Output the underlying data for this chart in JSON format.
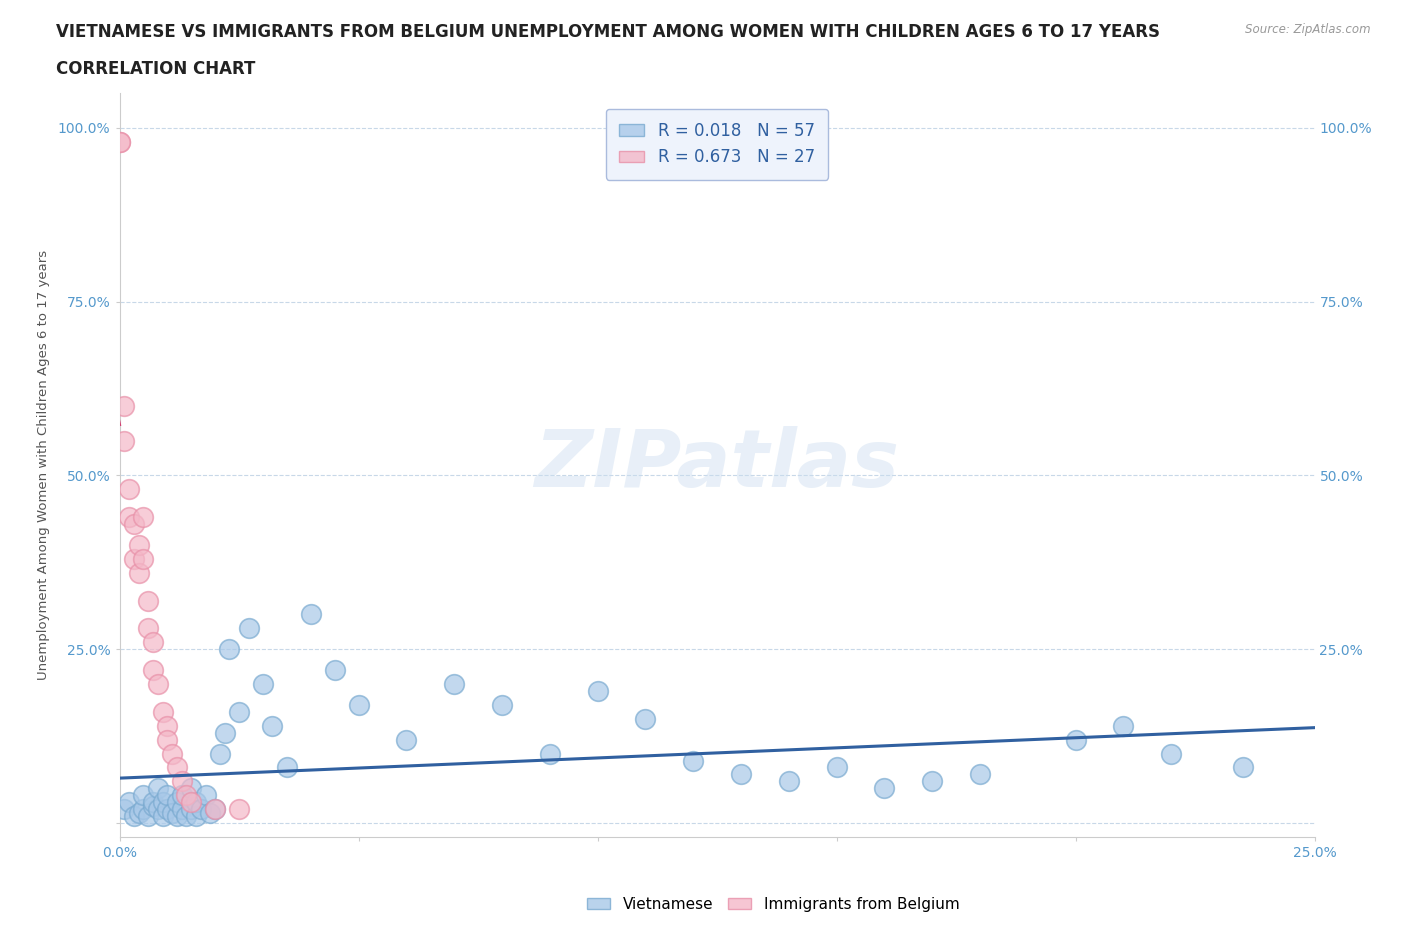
{
  "title_line1": "VIETNAMESE VS IMMIGRANTS FROM BELGIUM UNEMPLOYMENT AMONG WOMEN WITH CHILDREN AGES 6 TO 17 YEARS",
  "title_line2": "CORRELATION CHART",
  "source_text": "Source: ZipAtlas.com",
  "ylabel": "Unemployment Among Women with Children Ages 6 to 17 years",
  "xlim": [
    0.0,
    0.25
  ],
  "ylim": [
    -0.02,
    1.05
  ],
  "watermark": "ZIPatlas",
  "blue_label": "Vietnamese",
  "pink_label": "Immigrants from Belgium",
  "blue_R": 0.018,
  "blue_N": 57,
  "pink_R": 0.673,
  "pink_N": 27,
  "blue_color": "#a8c8e8",
  "pink_color": "#f4b8c8",
  "blue_edge_color": "#7aaad0",
  "pink_edge_color": "#e890a8",
  "blue_line_color": "#3060a0",
  "pink_line_color": "#d04070",
  "pink_dash_color": "#e898b8",
  "title_color": "#222222",
  "axis_label_color": "#555555",
  "tick_color": "#5599cc",
  "grid_color": "#c8d8e8",
  "legend_face_color": "#eef3fc",
  "legend_edge_color": "#aabbdd",
  "blue_scatter_x": [
    0.001,
    0.002,
    0.003,
    0.004,
    0.005,
    0.005,
    0.006,
    0.007,
    0.007,
    0.008,
    0.008,
    0.009,
    0.009,
    0.01,
    0.01,
    0.011,
    0.012,
    0.012,
    0.013,
    0.013,
    0.014,
    0.015,
    0.015,
    0.016,
    0.016,
    0.017,
    0.018,
    0.019,
    0.02,
    0.021,
    0.022,
    0.023,
    0.025,
    0.027,
    0.03,
    0.032,
    0.035,
    0.04,
    0.045,
    0.05,
    0.06,
    0.07,
    0.08,
    0.09,
    0.1,
    0.11,
    0.12,
    0.13,
    0.14,
    0.15,
    0.16,
    0.17,
    0.18,
    0.2,
    0.21,
    0.22,
    0.235
  ],
  "blue_scatter_y": [
    0.02,
    0.03,
    0.01,
    0.015,
    0.02,
    0.04,
    0.01,
    0.025,
    0.03,
    0.02,
    0.05,
    0.01,
    0.03,
    0.02,
    0.04,
    0.015,
    0.01,
    0.03,
    0.02,
    0.04,
    0.01,
    0.02,
    0.05,
    0.01,
    0.03,
    0.02,
    0.04,
    0.015,
    0.02,
    0.1,
    0.13,
    0.25,
    0.16,
    0.28,
    0.2,
    0.14,
    0.08,
    0.3,
    0.22,
    0.17,
    0.12,
    0.2,
    0.17,
    0.1,
    0.19,
    0.15,
    0.09,
    0.07,
    0.06,
    0.08,
    0.05,
    0.06,
    0.07,
    0.12,
    0.14,
    0.1,
    0.08
  ],
  "pink_scatter_x": [
    0.0,
    0.0,
    0.001,
    0.001,
    0.002,
    0.002,
    0.003,
    0.003,
    0.004,
    0.004,
    0.005,
    0.005,
    0.006,
    0.006,
    0.007,
    0.007,
    0.008,
    0.009,
    0.01,
    0.01,
    0.011,
    0.012,
    0.013,
    0.014,
    0.015,
    0.02,
    0.025
  ],
  "pink_scatter_y": [
    0.98,
    0.98,
    0.6,
    0.55,
    0.48,
    0.44,
    0.43,
    0.38,
    0.36,
    0.4,
    0.44,
    0.38,
    0.32,
    0.28,
    0.22,
    0.26,
    0.2,
    0.16,
    0.14,
    0.12,
    0.1,
    0.08,
    0.06,
    0.04,
    0.03,
    0.02,
    0.02
  ]
}
